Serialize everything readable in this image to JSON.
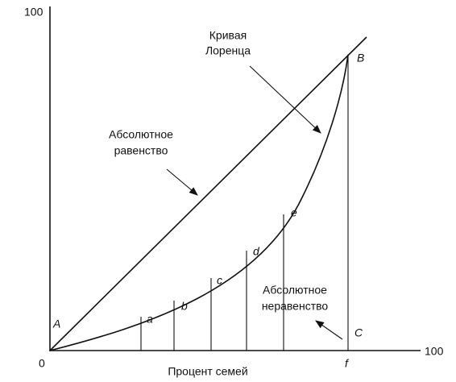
{
  "axes": {
    "y_max": "100",
    "x_max": "100",
    "origin": "0",
    "x_title": "Процент семей"
  },
  "points": {
    "A": "A",
    "B": "B",
    "C": "C",
    "f": "f"
  },
  "segments": [
    "a",
    "b",
    "c",
    "d",
    "e"
  ],
  "annotations": {
    "lorenz": [
      "Кривая",
      "Лоренца"
    ],
    "equality": [
      "Абсолютное",
      "равенство"
    ],
    "inequality": [
      "Абсолютное",
      "неравенство"
    ]
  }
}
